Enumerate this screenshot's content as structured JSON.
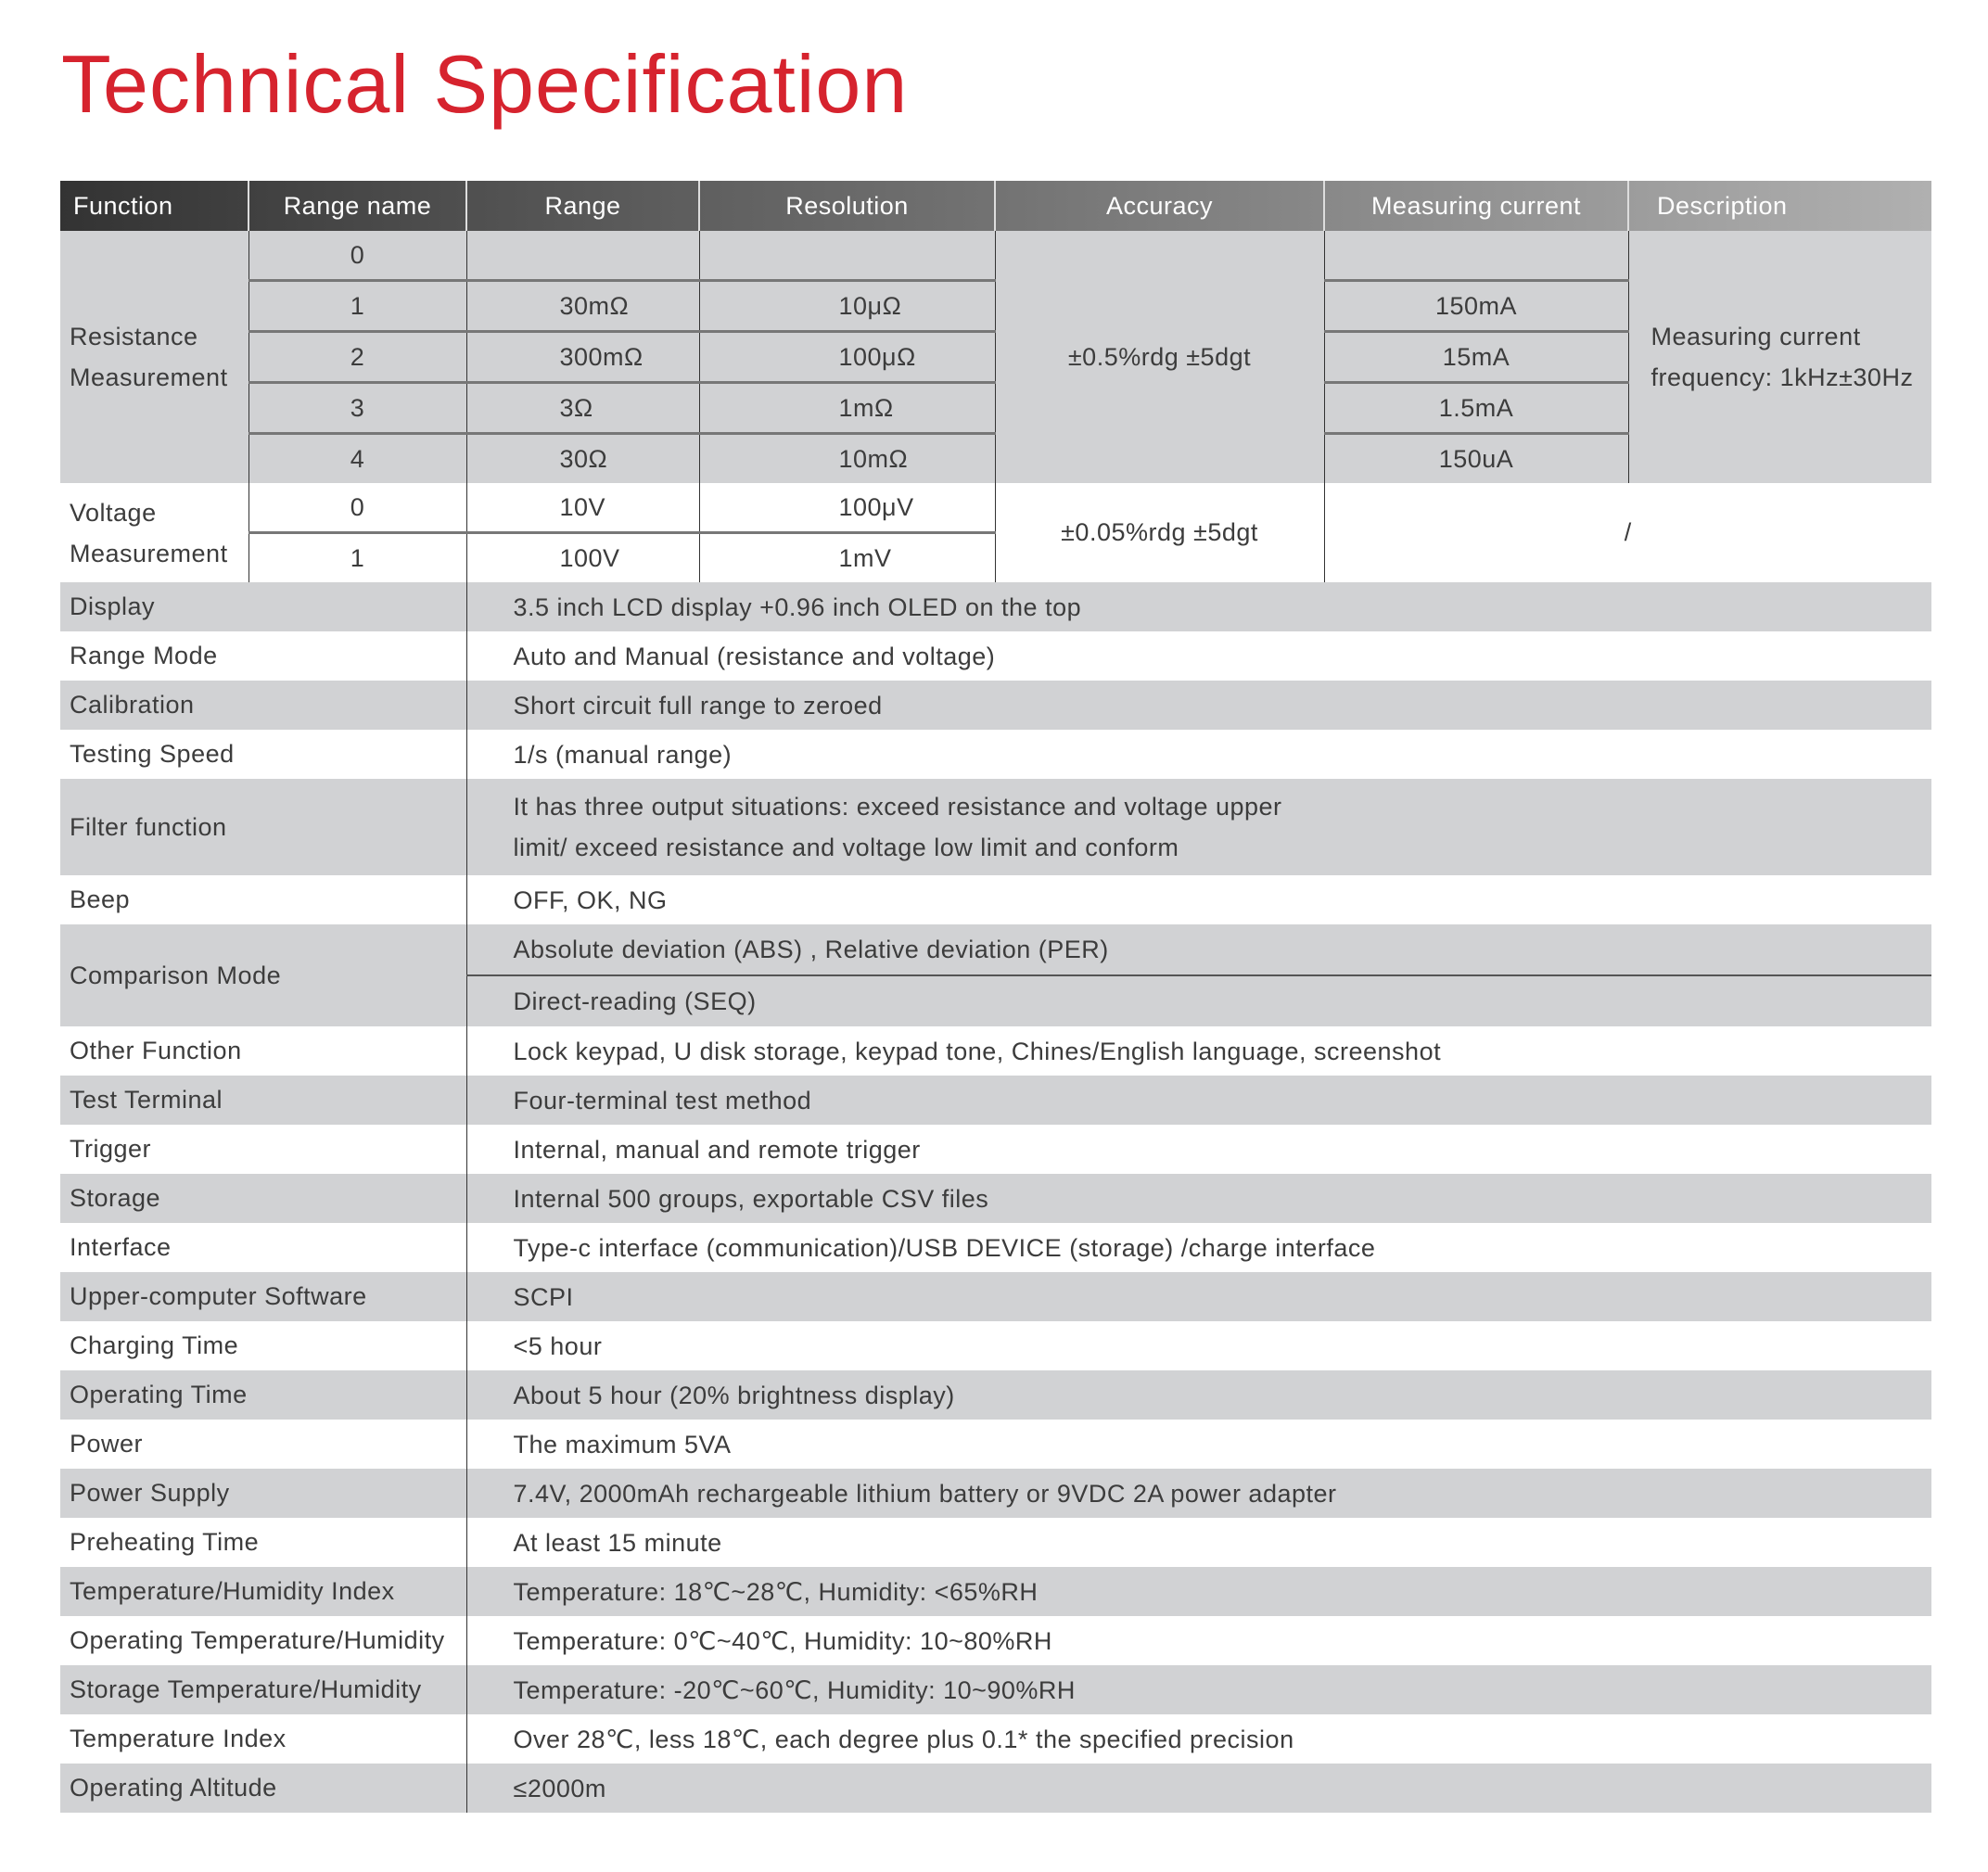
{
  "title": "Technical Specification",
  "headers": [
    "Function",
    "Range name",
    "Range",
    "Resolution",
    "Accuracy",
    "Measuring current",
    "Description"
  ],
  "resistance": {
    "function": [
      "Resistance",
      "Measurement"
    ],
    "rows": [
      {
        "range_name": "0",
        "range": "",
        "resolution": "",
        "current": ""
      },
      {
        "range_name": "1",
        "range": "30mΩ",
        "resolution": "10μΩ",
        "current": "150mA"
      },
      {
        "range_name": "2",
        "range": "300mΩ",
        "resolution": "100μΩ",
        "current": "15mA"
      },
      {
        "range_name": "3",
        "range": "3Ω",
        "resolution": "1mΩ",
        "current": "1.5mA"
      },
      {
        "range_name": "4",
        "range": "30Ω",
        "resolution": "10mΩ",
        "current": "150uA"
      }
    ],
    "accuracy": "±0.5%rdg ±5dgt",
    "description": [
      "Measuring current",
      "frequency: 1kHz±30Hz"
    ]
  },
  "voltage": {
    "function": [
      "Voltage",
      "Measurement"
    ],
    "rows": [
      {
        "range_name": "0",
        "range": "10V",
        "resolution": "100μV"
      },
      {
        "range_name": "1",
        "range": "100V",
        "resolution": "1mV"
      }
    ],
    "accuracy": "±0.05%rdg ±5dgt",
    "current_description": "/"
  },
  "specs": [
    {
      "label": "Display",
      "value": [
        "3.5 inch LCD display +0.96 inch OLED on the top"
      ]
    },
    {
      "label": "Range Mode",
      "value": [
        "Auto and Manual (resistance and voltage)"
      ]
    },
    {
      "label": "Calibration",
      "value": [
        "Short circuit full range to zeroed"
      ]
    },
    {
      "label": "Testing Speed",
      "value": [
        "1/s (manual range)"
      ]
    },
    {
      "label": "Filter function",
      "value": [
        "It has three output situations: exceed resistance and voltage upper",
        "limit/ exceed resistance and voltage low limit and conform"
      ]
    },
    {
      "label": "Beep",
      "value": [
        "OFF, OK, NG"
      ]
    },
    {
      "label": "Comparison Mode",
      "split": [
        "Absolute deviation (ABS) , Relative deviation (PER)",
        "Direct-reading (SEQ)"
      ]
    },
    {
      "label": "Other Function",
      "value": [
        "Lock keypad, U disk storage, keypad tone, Chines/English language, screenshot"
      ]
    },
    {
      "label": "Test Terminal",
      "value": [
        "Four-terminal test method"
      ]
    },
    {
      "label": "Trigger",
      "value": [
        "Internal, manual and remote trigger"
      ]
    },
    {
      "label": "Storage",
      "value": [
        "Internal 500 groups, exportable CSV files"
      ]
    },
    {
      "label": "Interface",
      "value": [
        "Type-c interface (communication)/USB DEVICE (storage) /charge interface"
      ]
    },
    {
      "label": "Upper-computer Software",
      "value": [
        "SCPI"
      ]
    },
    {
      "label": "Charging Time",
      "value": [
        "<5 hour"
      ]
    },
    {
      "label": "Operating Time",
      "value": [
        "About 5 hour (20% brightness display)"
      ]
    },
    {
      "label": "Power",
      "value": [
        "The maximum 5VA"
      ]
    },
    {
      "label": "Power Supply",
      "value": [
        "7.4V, 2000mAh rechargeable lithium battery or 9VDC 2A power adapter"
      ]
    },
    {
      "label": "Preheating Time",
      "value": [
        "At least 15 minute"
      ]
    },
    {
      "label": "Temperature/Humidity Index",
      "value": [
        "Temperature: 18℃~28℃, Humidity: <65%RH"
      ]
    },
    {
      "label": "Operating Temperature/Humidity",
      "value": [
        "Temperature: 0℃~40℃, Humidity: 10~80%RH"
      ]
    },
    {
      "label": "Storage Temperature/Humidity",
      "value": [
        "Temperature: -20℃~60℃, Humidity: 10~90%RH"
      ]
    },
    {
      "label": "Temperature Index",
      "value": [
        "Over 28℃, less 18℃, each degree plus 0.1* the specified precision"
      ]
    },
    {
      "label": "Operating Altitude",
      "value": [
        "≤2000m"
      ]
    }
  ],
  "colors": {
    "title": "#d6232e",
    "row_gray": "#d1d2d4",
    "header_dark": "#333333",
    "header_light": "#b0b0b0"
  }
}
